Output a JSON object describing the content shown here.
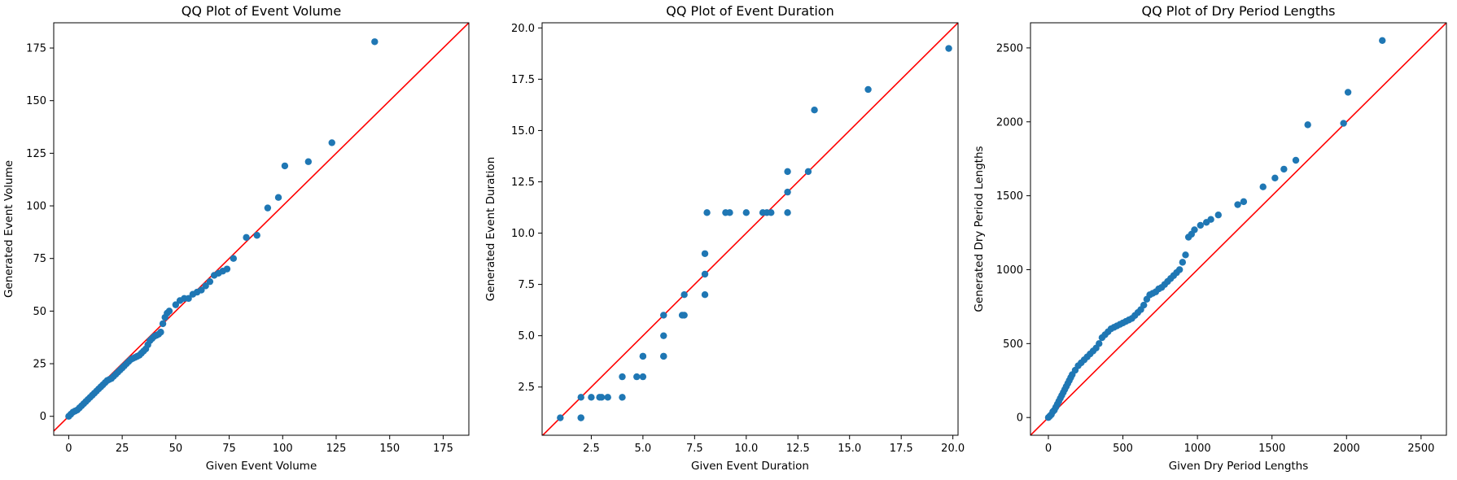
{
  "chart_data": [
    {
      "type": "scatter",
      "title": "QQ Plot of Event Volume",
      "xlabel": "Given Event Volume",
      "ylabel": "Generated Event Volume",
      "xlim": [
        -7,
        187
      ],
      "ylim": [
        -9,
        187
      ],
      "xticks": [
        0,
        25,
        50,
        75,
        100,
        125,
        150,
        175
      ],
      "yticks": [
        0,
        25,
        50,
        75,
        100,
        125,
        150,
        175
      ],
      "tick_labels": {
        "x": [
          "0",
          "25",
          "50",
          "75",
          "100",
          "125",
          "150",
          "175"
        ],
        "y": [
          "0",
          "25",
          "50",
          "75",
          "100",
          "125",
          "150",
          "175"
        ]
      },
      "point_color": "#1f77b4",
      "reference_line": {
        "color": "#ff0000",
        "description": "y = x"
      },
      "x": [
        0,
        1,
        2,
        3,
        4,
        5,
        6,
        7,
        8,
        9,
        10,
        11,
        12,
        13,
        14,
        15,
        16,
        17,
        18,
        19,
        20,
        21,
        22,
        23,
        24,
        25,
        26,
        27,
        28,
        29,
        30,
        31,
        32,
        33,
        34,
        35,
        36,
        37,
        38,
        39,
        40,
        41,
        42,
        43,
        44,
        45,
        46,
        47,
        50,
        52,
        54,
        56,
        58,
        60,
        62,
        64,
        66,
        68,
        70,
        72,
        74,
        77,
        83,
        88,
        93,
        98,
        101,
        112,
        123,
        143
      ],
      "y": [
        0,
        1,
        2,
        2.5,
        3,
        4,
        5,
        6,
        7,
        8,
        9,
        10,
        11,
        12,
        13,
        14,
        15,
        16,
        17,
        17.5,
        18,
        19,
        20,
        21,
        22,
        23,
        24,
        25,
        26,
        27,
        27.5,
        28,
        28.5,
        29,
        30,
        31,
        32,
        34,
        36,
        37,
        38,
        38.5,
        39,
        40,
        44,
        47,
        49,
        50,
        53,
        55,
        56,
        56,
        58,
        59,
        60,
        62,
        64,
        67,
        68,
        69,
        70,
        75,
        85,
        86,
        99,
        104,
        119,
        121,
        130,
        178
      ]
    },
    {
      "type": "scatter",
      "title": "QQ Plot of Event Duration",
      "xlabel": "Given Event Duration",
      "ylabel": "Generated Event Duration",
      "xlim": [
        0.12,
        20.25
      ],
      "ylim": [
        0.15,
        20.25
      ],
      "xticks": [
        2.5,
        5.0,
        7.5,
        10.0,
        12.5,
        15.0,
        17.5,
        20.0
      ],
      "yticks": [
        2.5,
        5.0,
        7.5,
        10.0,
        12.5,
        15.0,
        17.5,
        20.0
      ],
      "tick_labels": {
        "x": [
          "2.5",
          "5.0",
          "7.5",
          "10.0",
          "12.5",
          "15.0",
          "17.5",
          "20.0"
        ],
        "y": [
          "2.5",
          "5.0",
          "7.5",
          "10.0",
          "12.5",
          "15.0",
          "17.5",
          "20.0"
        ]
      },
      "point_color": "#1f77b4",
      "reference_line": {
        "color": "#ff0000",
        "description": "y = x"
      },
      "x": [
        1,
        2,
        2,
        2,
        2.5,
        2.9,
        3,
        3.3,
        4,
        4,
        4.7,
        5,
        5,
        5,
        6,
        6,
        6,
        6,
        6.9,
        7,
        7,
        8,
        8,
        8,
        8.1,
        9,
        9.2,
        10,
        10.8,
        11,
        11.2,
        12,
        12,
        12,
        13,
        13.3,
        15.9,
        19.8
      ],
      "y": [
        1,
        1,
        1,
        2,
        2,
        2,
        2,
        2,
        2,
        3,
        3,
        3,
        4,
        4,
        4,
        5,
        6,
        4,
        6,
        6,
        7,
        7,
        8,
        9,
        11,
        11,
        11,
        11,
        11,
        11,
        11,
        11,
        12,
        13,
        13,
        16,
        17,
        19
      ]
    },
    {
      "type": "scatter",
      "title": "QQ Plot of Dry Period Lengths",
      "xlabel": "Given Dry Period Lengths",
      "ylabel": "Generated Dry Period Lengths",
      "xlim": [
        -120,
        2670
      ],
      "ylim": [
        -120,
        2670
      ],
      "xticks": [
        0,
        500,
        1000,
        1500,
        2000,
        2500
      ],
      "yticks": [
        0,
        500,
        1000,
        1500,
        2000,
        2500
      ],
      "tick_labels": {
        "x": [
          "0",
          "500",
          "1000",
          "1500",
          "2000",
          "2500"
        ],
        "y": [
          "0",
          "500",
          "1000",
          "1500",
          "2000",
          "2500"
        ]
      },
      "point_color": "#1f77b4",
      "reference_line": {
        "color": "#ff0000",
        "description": "y = x"
      },
      "x": [
        0,
        10,
        20,
        30,
        40,
        50,
        60,
        70,
        80,
        90,
        100,
        110,
        120,
        130,
        140,
        150,
        160,
        180,
        200,
        220,
        240,
        260,
        280,
        300,
        320,
        340,
        360,
        380,
        400,
        420,
        440,
        460,
        480,
        500,
        520,
        540,
        560,
        580,
        600,
        620,
        640,
        660,
        680,
        700,
        720,
        740,
        760,
        780,
        800,
        820,
        840,
        860,
        880,
        900,
        920,
        940,
        960,
        980,
        1020,
        1060,
        1090,
        1140,
        1270,
        1310,
        1440,
        1520,
        1580,
        1660,
        1740,
        1980,
        2010,
        2240
      ],
      "y": [
        0,
        10,
        20,
        40,
        50,
        70,
        90,
        110,
        130,
        150,
        170,
        190,
        210,
        230,
        250,
        270,
        290,
        320,
        350,
        370,
        390,
        410,
        430,
        450,
        470,
        500,
        540,
        560,
        580,
        600,
        610,
        620,
        630,
        640,
        650,
        660,
        670,
        690,
        710,
        730,
        760,
        800,
        830,
        840,
        850,
        870,
        880,
        900,
        920,
        940,
        960,
        980,
        1000,
        1050,
        1100,
        1220,
        1240,
        1270,
        1300,
        1320,
        1340,
        1370,
        1440,
        1460,
        1560,
        1620,
        1680,
        1740,
        1980,
        1990,
        2200,
        2550
      ]
    }
  ]
}
